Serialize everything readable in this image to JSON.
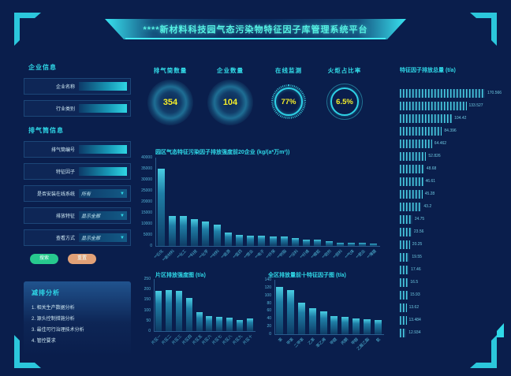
{
  "header": {
    "title": "****新材料科技园气态污染物特征因子库管理系统平台"
  },
  "sidebar": {
    "enterprise": {
      "title": "企业信息",
      "fields": [
        {
          "label": "企业名称",
          "type": "input",
          "value": ""
        },
        {
          "label": "行业类别",
          "type": "input",
          "value": ""
        }
      ]
    },
    "stack": {
      "title": "排气筒信息",
      "fields": [
        {
          "label": "排气筒编号",
          "type": "input",
          "value": ""
        },
        {
          "label": "特征因子",
          "type": "input",
          "value": ""
        },
        {
          "label": "是否安装在线系统",
          "type": "select",
          "value": "所有"
        },
        {
          "label": "排放特征",
          "type": "select",
          "value": "显示全部"
        },
        {
          "label": "查看方式",
          "type": "select",
          "value": "显示全部"
        }
      ]
    },
    "buttons": {
      "search": "搜索",
      "reset": "重置"
    },
    "analysis": {
      "title": "减排分析",
      "items": [
        "1. 相关生产数据分析",
        "2. 源头控制措施分析",
        "3. 最佳可行治理技术分析",
        "4. 管控要求"
      ]
    }
  },
  "stats": {
    "items": [
      {
        "label": "排气筒数量",
        "value": "354",
        "style": "sphere"
      },
      {
        "label": "企业数量",
        "value": "104",
        "style": "sphere"
      },
      {
        "label": "在线监测",
        "value": "77%",
        "style": "gauge"
      },
      {
        "label": "火炬占比率",
        "value": "6.5%",
        "style": "ring"
      }
    ]
  },
  "colors": {
    "background": "#0a1e4c",
    "accent_cyan": "#2fd9e8",
    "value_yellow": "#f4ef2b",
    "button_green": "#27c98e",
    "button_orange": "#e2a177"
  },
  "chart_data": [
    {
      "id": "top20",
      "type": "bar",
      "title": "园区气态特征污染因子排放强度前20企业 (kg/(a*万m²))",
      "ylim": [
        0,
        40000
      ],
      "yticks": [
        0,
        5000,
        10000,
        15000,
        20000,
        25000,
        30000,
        35000,
        40000
      ],
      "grid": false,
      "categories": [
        "**石化",
        "**新材料",
        "**化工",
        "**科技",
        "**化学",
        "**材料",
        "**能源",
        "**医药",
        "**塑业",
        "**电子",
        "**环保",
        "**树脂",
        "**涂料",
        "**纤维",
        "**橡胶",
        "**助剂",
        "**颜料",
        "**气体",
        "**肥业",
        "**薄膜"
      ],
      "values": [
        35000,
        13600,
        13600,
        12300,
        11200,
        9800,
        6100,
        5000,
        4800,
        4500,
        4400,
        4200,
        3500,
        3000,
        2800,
        2200,
        1500,
        1500,
        1300,
        1200
      ]
    },
    {
      "id": "district",
      "type": "bar",
      "title": "片区排放强度图 (t/a)",
      "ylim": [
        0,
        250
      ],
      "yticks": [
        0,
        50,
        100,
        150,
        200,
        250
      ],
      "grid": false,
      "categories": [
        "片区一",
        "片区二",
        "片区三",
        "片区四",
        "片区五",
        "片区六",
        "片区七",
        "片区八",
        "片区九",
        "片区十"
      ],
      "values": [
        195,
        197,
        193,
        160,
        90,
        72,
        68,
        66,
        52,
        60
      ]
    },
    {
      "id": "factors",
      "type": "bar",
      "title": "全区排放量前十特征因子图 (t/a)",
      "ylim": [
        0,
        140
      ],
      "yticks": [
        0,
        20,
        40,
        60,
        80,
        100,
        120,
        140
      ],
      "grid": false,
      "categories": [
        "苯",
        "甲苯",
        "二甲苯",
        "乙苯",
        "苯乙烯",
        "甲醛",
        "丙酮",
        "甲醇",
        "乙酸乙酯",
        "氨"
      ],
      "values": [
        122,
        114,
        81,
        67,
        58,
        47,
        44,
        41,
        38,
        37
      ]
    },
    {
      "id": "total",
      "type": "bar-horizontal",
      "title": "特征因子排放总量 (t/a)",
      "values": [
        170.566,
        133.527,
        104.42,
        84.396,
        64.462,
        52.826,
        48.68,
        46.61,
        45.28,
        43.2,
        24.75,
        23.56,
        20.25,
        19.55,
        17.46,
        16.5,
        15.93,
        13.62,
        13.484,
        12.934
      ]
    }
  ]
}
